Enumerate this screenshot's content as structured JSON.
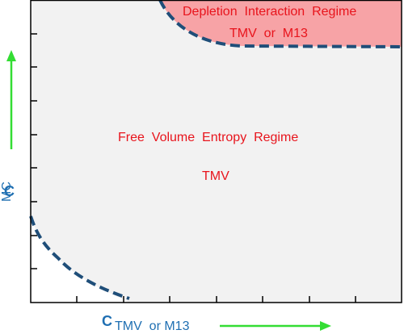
{
  "regimes": {
    "depletion": {
      "title": "Depletion  Interaction  Regime",
      "subtitle": "TMV  or  M13",
      "fill": "#f7a3a6"
    },
    "free_volume": {
      "title": "Free  Volume  Entropy  Regime",
      "subtitle": "TMV",
      "fill": "#f2f2f2"
    }
  },
  "axes": {
    "y": {
      "symbol": "C",
      "subscript": "MC"
    },
    "x": {
      "symbol": "C",
      "subscript": "TMV  or M13"
    }
  },
  "colors": {
    "boundary": "#1f4e79",
    "arrow": "#33dd33",
    "label_text": "#e8141c",
    "axis_text": "#1f6fb2"
  }
}
